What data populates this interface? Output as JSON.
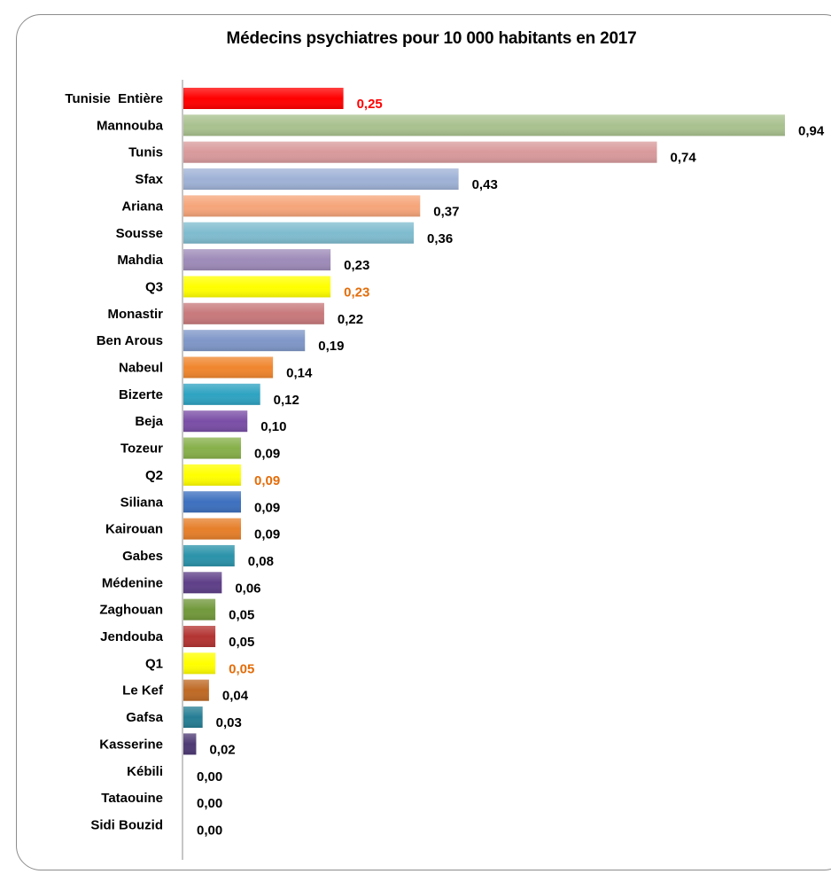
{
  "chart_data": {
    "type": "bar",
    "orientation": "horizontal",
    "title": "Médecins psychiatres pour 10 000 habitants en 2017",
    "xlabel": "",
    "ylabel": "",
    "xlim": [
      0,
      0.94
    ],
    "grid": false,
    "legend": "none",
    "categories": [
      "Tunisie  Entière",
      "Mannouba",
      "Tunis",
      "Sfax",
      "Ariana",
      "Sousse",
      "Mahdia",
      "Q3",
      "Monastir",
      "Ben Arous",
      "Nabeul",
      "Bizerte",
      "Beja",
      "Tozeur",
      "Q2",
      "Siliana",
      "Kairouan",
      "Gabes",
      "Médenine",
      "Zaghouan",
      "Jendouba",
      "Q1",
      "Le Kef",
      "Gafsa",
      "Kasserine",
      "Kébili",
      "Tataouine",
      "Sidi Bouzid"
    ],
    "values": [
      0.25,
      0.94,
      0.74,
      0.43,
      0.37,
      0.36,
      0.23,
      0.23,
      0.22,
      0.19,
      0.14,
      0.12,
      0.1,
      0.09,
      0.09,
      0.09,
      0.09,
      0.08,
      0.06,
      0.05,
      0.05,
      0.05,
      0.04,
      0.03,
      0.02,
      0.0,
      0.0,
      0.0
    ],
    "value_labels": [
      "0,25",
      "0,94",
      "0,74",
      "0,43",
      "0,37",
      "0,36",
      "0,23",
      "0,23",
      "0,22",
      "0,19",
      "0,14",
      "0,12",
      "0,10",
      "0,09",
      "0,09",
      "0,09",
      "0,09",
      "0,08",
      "0,06",
      "0,05",
      "0,05",
      "0,05",
      "0,04",
      "0,03",
      "0,02",
      "0,00",
      "0,00",
      "0,00"
    ],
    "bar_colors": [
      "#ff0000",
      "#a9c18f",
      "#d99a9c",
      "#9fb2d6",
      "#f6a57a",
      "#7fbccf",
      "#9e8bb9",
      "#ffff00",
      "#c8797b",
      "#7f97c8",
      "#f0862e",
      "#2ea3c2",
      "#7a4ea6",
      "#87b04a",
      "#ffff00",
      "#3d70bf",
      "#e67f2a",
      "#2b93aa",
      "#5e3f88",
      "#72993c",
      "#b33432",
      "#ffff00",
      "#bf6a25",
      "#267e94",
      "#4e3a74",
      "#808080",
      "#808080",
      "#808080"
    ],
    "label_colors": [
      "#ff0000",
      "#000000",
      "#000000",
      "#000000",
      "#000000",
      "#000000",
      "#000000",
      "#e36c09",
      "#000000",
      "#000000",
      "#000000",
      "#000000",
      "#000000",
      "#000000",
      "#e36c09",
      "#000000",
      "#000000",
      "#000000",
      "#000000",
      "#000000",
      "#000000",
      "#e36c09",
      "#000000",
      "#000000",
      "#000000",
      "#000000",
      "#000000",
      "#000000"
    ]
  }
}
